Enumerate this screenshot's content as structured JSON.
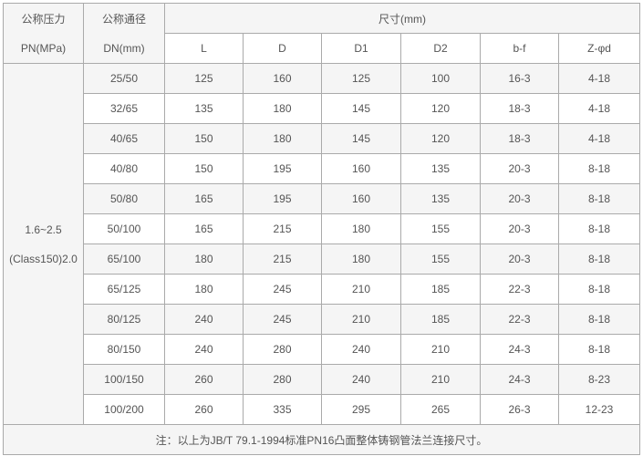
{
  "header": {
    "pressure_line1": "公称压力",
    "pressure_line2": "PN(MPa)",
    "dn_line1": "公称通径",
    "dn_line2": "DN(mm)",
    "size_group": "尺寸(mm)",
    "columns": [
      "L",
      "D",
      "D1",
      "D2",
      "b-f",
      "Z-φd"
    ]
  },
  "pressure_value_line1": "1.6~2.5",
  "pressure_value_line2": "(Class150)2.0",
  "rows": [
    [
      "25/50",
      "125",
      "160",
      "125",
      "100",
      "16-3",
      "4-18"
    ],
    [
      "32/65",
      "135",
      "180",
      "145",
      "120",
      "18-3",
      "4-18"
    ],
    [
      "40/65",
      "150",
      "180",
      "145",
      "120",
      "18-3",
      "4-18"
    ],
    [
      "40/80",
      "150",
      "195",
      "160",
      "135",
      "20-3",
      "8-18"
    ],
    [
      "50/80",
      "165",
      "195",
      "160",
      "135",
      "20-3",
      "8-18"
    ],
    [
      "50/100",
      "165",
      "215",
      "180",
      "155",
      "20-3",
      "8-18"
    ],
    [
      "65/100",
      "180",
      "215",
      "180",
      "155",
      "20-3",
      "8-18"
    ],
    [
      "65/125",
      "180",
      "245",
      "210",
      "185",
      "22-3",
      "8-18"
    ],
    [
      "80/125",
      "240",
      "245",
      "210",
      "185",
      "22-3",
      "8-18"
    ],
    [
      "80/150",
      "240",
      "280",
      "240",
      "210",
      "24-3",
      "8-18"
    ],
    [
      "100/150",
      "260",
      "280",
      "240",
      "210",
      "24-3",
      "8-23"
    ],
    [
      "100/200",
      "260",
      "335",
      "295",
      "265",
      "26-3",
      "12-23"
    ]
  ],
  "note": "注：以上为JB/T 79.1-1994标准PN16凸面整体铸钢管法兰连接尺寸。",
  "colors": {
    "border": "#aaaaaa",
    "shade": "#f5f5f5",
    "text": "#555555"
  }
}
